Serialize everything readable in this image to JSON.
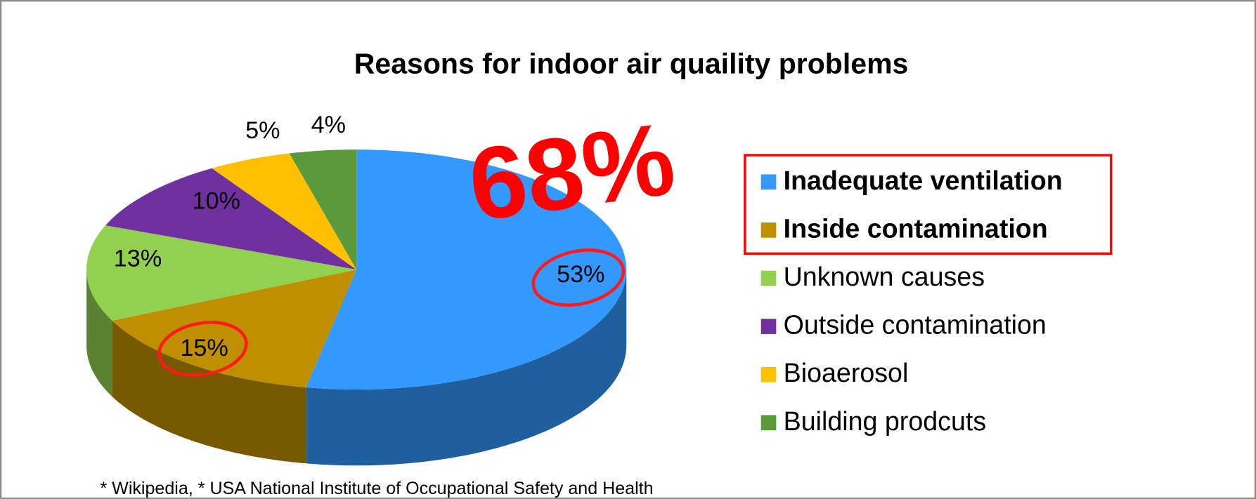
{
  "chart_data": {
    "type": "pie",
    "title": "Reasons for indoor air quaility problems",
    "categories": [
      "Inadequate ventilation",
      "Inside contamination",
      "Unknown causes",
      "Outside contamination",
      "Bioaerosol",
      "Building prodcuts"
    ],
    "values": [
      53,
      15,
      13,
      10,
      5,
      4
    ],
    "value_labels": [
      "53%",
      "15%",
      "13%",
      "10%",
      "5%",
      "4%"
    ],
    "colors": [
      "#3399ff",
      "#bf8f00",
      "#92d050",
      "#7030a0",
      "#ffc000",
      "#5b9a3b"
    ],
    "annotation": "68%",
    "note": "*  Wikipedia, * USA National Institute of Occupational Safety and Health",
    "legend": "right"
  }
}
